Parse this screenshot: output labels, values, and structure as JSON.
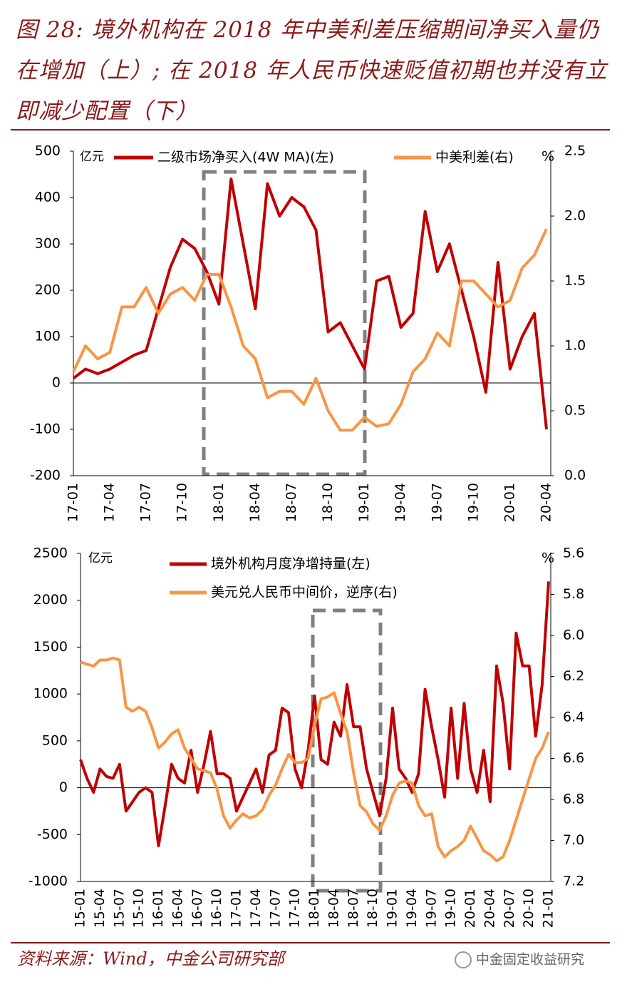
{
  "title": "图 28: 境外机构在 2018 年中美利差压缩期间净买入量仍在增加（上）; 在 2018 年人民币快速贬值初期也并没有立即减少配置（下）",
  "chart_data": [
    {
      "type": "line",
      "ylabel": "亿元",
      "y2label": "%",
      "categories": [
        "17-01",
        null,
        null,
        "17-04",
        null,
        null,
        "17-07",
        null,
        null,
        "17-10",
        null,
        null,
        "18-01",
        null,
        null,
        "18-04",
        null,
        null,
        "18-07",
        null,
        null,
        "18-10",
        null,
        null,
        "19-01",
        null,
        null,
        "19-04",
        null,
        null,
        "19-07",
        null,
        null,
        "19-10",
        null,
        null,
        "20-01",
        null,
        null,
        "20-04"
      ],
      "series": [
        {
          "name": "二级市场净买入(4W MA)(左)",
          "color": "#c00000",
          "values": [
            10,
            30,
            20,
            30,
            45,
            60,
            70,
            160,
            250,
            310,
            290,
            240,
            170,
            440,
            300,
            160,
            430,
            360,
            400,
            380,
            330,
            110,
            130,
            80,
            30,
            220,
            230,
            120,
            150,
            370,
            240,
            300,
            200,
            100,
            -20,
            260,
            30,
            100,
            150,
            -100
          ]
        },
        {
          "name": "中美利差(右)",
          "color": "#f79646",
          "axis": "y2",
          "values": [
            0.8,
            1.0,
            0.9,
            0.95,
            1.3,
            1.3,
            1.45,
            1.25,
            1.4,
            1.45,
            1.35,
            1.55,
            1.55,
            1.3,
            1.0,
            0.9,
            0.6,
            0.65,
            0.65,
            0.55,
            0.75,
            0.5,
            0.35,
            0.35,
            0.45,
            0.38,
            0.4,
            0.55,
            0.8,
            0.9,
            1.1,
            1.0,
            1.5,
            1.5,
            1.4,
            1.3,
            1.35,
            1.6,
            1.7,
            1.9
          ]
        }
      ],
      "ylim": [
        -200,
        500
      ],
      "yticks": [
        -200,
        -100,
        0,
        100,
        200,
        300,
        400,
        500
      ],
      "y2lim": [
        0,
        2.5
      ],
      "y2ticks": [
        {
          "value": 0,
          "label": "0.0"
        },
        0.5,
        {
          "value": 1,
          "label": "1.0"
        },
        1.5,
        {
          "value": 2,
          "label": "2.0"
        },
        2.5
      ],
      "y2_inverted": false
    },
    {
      "type": "line",
      "ylabel": "亿元",
      "y2label": "%",
      "categories": [
        "15-01",
        null,
        null,
        "15-04",
        null,
        null,
        "15-07",
        null,
        null,
        "15-10",
        null,
        null,
        "16-01",
        null,
        null,
        "16-04",
        null,
        null,
        "16-07",
        null,
        null,
        "16-10",
        null,
        null,
        "17-01",
        null,
        null,
        "17-04",
        null,
        null,
        "17-07",
        null,
        null,
        "17-10",
        null,
        null,
        "18-01",
        null,
        null,
        "18-04",
        null,
        null,
        "18-07",
        null,
        null,
        "18-10",
        null,
        null,
        "19-01",
        null,
        null,
        "19-04",
        null,
        null,
        "19-07",
        null,
        null,
        "19-10",
        null,
        null,
        "20-01",
        null,
        null,
        "20-04",
        null,
        null,
        "20-07",
        null,
        null,
        "20-10",
        null,
        null,
        "21-01"
      ],
      "series": [
        {
          "name": "境外机构月度净增持量(左)",
          "color": "#c00000",
          "values": [
            300,
            100,
            -50,
            200,
            120,
            100,
            250,
            -250,
            -150,
            -50,
            0,
            -50,
            -620,
            -200,
            250,
            100,
            50,
            400,
            -50,
            250,
            600,
            150,
            150,
            100,
            -250,
            -100,
            50,
            200,
            -50,
            350,
            400,
            850,
            800,
            200,
            0,
            400,
            980,
            300,
            250,
            700,
            550,
            1100,
            650,
            650,
            200,
            -50,
            -300,
            100,
            850,
            200,
            100,
            -50,
            150,
            1050,
            650,
            300,
            -100,
            850,
            100,
            900,
            200,
            -50,
            400,
            -150,
            1300,
            900,
            200,
            1650,
            1300,
            1300,
            550,
            1100,
            2200
          ]
        },
        {
          "name": "美元兑人民币中间价，逆序(右)",
          "color": "#f79646",
          "axis": "y2",
          "values": [
            6.13,
            6.14,
            6.15,
            6.12,
            6.12,
            6.11,
            6.12,
            6.35,
            6.37,
            6.35,
            6.37,
            6.45,
            6.55,
            6.52,
            6.48,
            6.46,
            6.55,
            6.6,
            6.65,
            6.66,
            6.67,
            6.75,
            6.88,
            6.94,
            6.9,
            6.87,
            6.89,
            6.88,
            6.85,
            6.78,
            6.73,
            6.65,
            6.58,
            6.62,
            6.62,
            6.6,
            6.44,
            6.31,
            6.3,
            6.28,
            6.38,
            6.47,
            6.67,
            6.83,
            6.86,
            6.92,
            6.95,
            6.88,
            6.78,
            6.72,
            6.71,
            6.72,
            6.83,
            6.88,
            6.87,
            7.03,
            7.08,
            7.05,
            7.03,
            7.0,
            6.93,
            6.99,
            7.05,
            7.07,
            7.1,
            7.08,
            7.0,
            6.9,
            6.8,
            6.7,
            6.6,
            6.55,
            6.47
          ]
        }
      ],
      "ylim": [
        -1000,
        2500
      ],
      "yticks": [
        -1000,
        -500,
        0,
        500,
        1000,
        1500,
        2000,
        2500
      ],
      "y2lim": [
        5.6,
        7.2
      ],
      "y2ticks": [
        5.6,
        5.8,
        {
          "value": 6,
          "label": "6.0"
        },
        6.2,
        6.4,
        6.6,
        6.8,
        {
          "value": 7,
          "label": "7.0"
        },
        7.2
      ],
      "y2_inverted": true
    }
  ],
  "source": "资料来源：Wind，中金公司研究部",
  "watermark": "中金固定收益研究"
}
